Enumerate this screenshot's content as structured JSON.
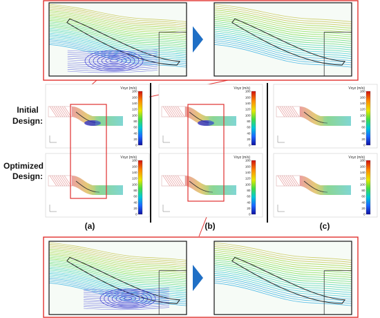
{
  "row_labels": {
    "initial_1": "Initial",
    "initial_2": "Design:",
    "optimized_1": "Optimized",
    "optimized_2": "Design:"
  },
  "column_labels": [
    "(a)",
    "(b)",
    "(c)"
  ],
  "colorbar": {
    "title": "Vxyz (m/s)",
    "ticks": [
      "180",
      "160",
      "140",
      "120",
      "100",
      "80",
      "60",
      "40",
      "20",
      "0"
    ]
  },
  "colors": {
    "highlight": "#e0302e",
    "arrow": "#1f6fc5",
    "divider": "#111111",
    "recirculation": "#2a2acc",
    "fast_flow": "#9be23c"
  }
}
